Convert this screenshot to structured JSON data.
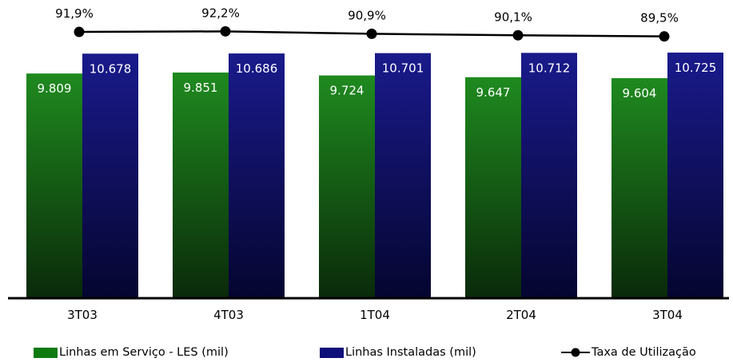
{
  "chart_data": {
    "type": "bar",
    "categories": [
      "3T03",
      "4T03",
      "1T04",
      "2T04",
      "3T04"
    ],
    "bar_series": [
      {
        "name": "Linhas em Serviço - LES (mil)",
        "values": [
          9.809,
          9.851,
          9.724,
          9.647,
          9.604
        ],
        "labels": [
          "9.809",
          "9.851",
          "9.724",
          "9.647",
          "9.604"
        ],
        "color_top": "#1f8a1f",
        "color_bottom": "#0a2a0a"
      },
      {
        "name": "Linhas Instaladas (mil)",
        "values": [
          10.678,
          10.686,
          10.701,
          10.712,
          10.725
        ],
        "labels": [
          "10.678",
          "10.686",
          "10.701",
          "10.712",
          "10.725"
        ],
        "color_top": "#1a1a8c",
        "color_bottom": "#050530"
      }
    ],
    "line_series": {
      "name": "Taxa de Utilização",
      "values": [
        91.9,
        92.2,
        90.9,
        90.1,
        89.5
      ],
      "labels": [
        "91,9%",
        "92,2%",
        "90,9%",
        "90,1%",
        "89,5%"
      ],
      "color": "#000000"
    },
    "legend_position": "bottom",
    "grid": false
  }
}
